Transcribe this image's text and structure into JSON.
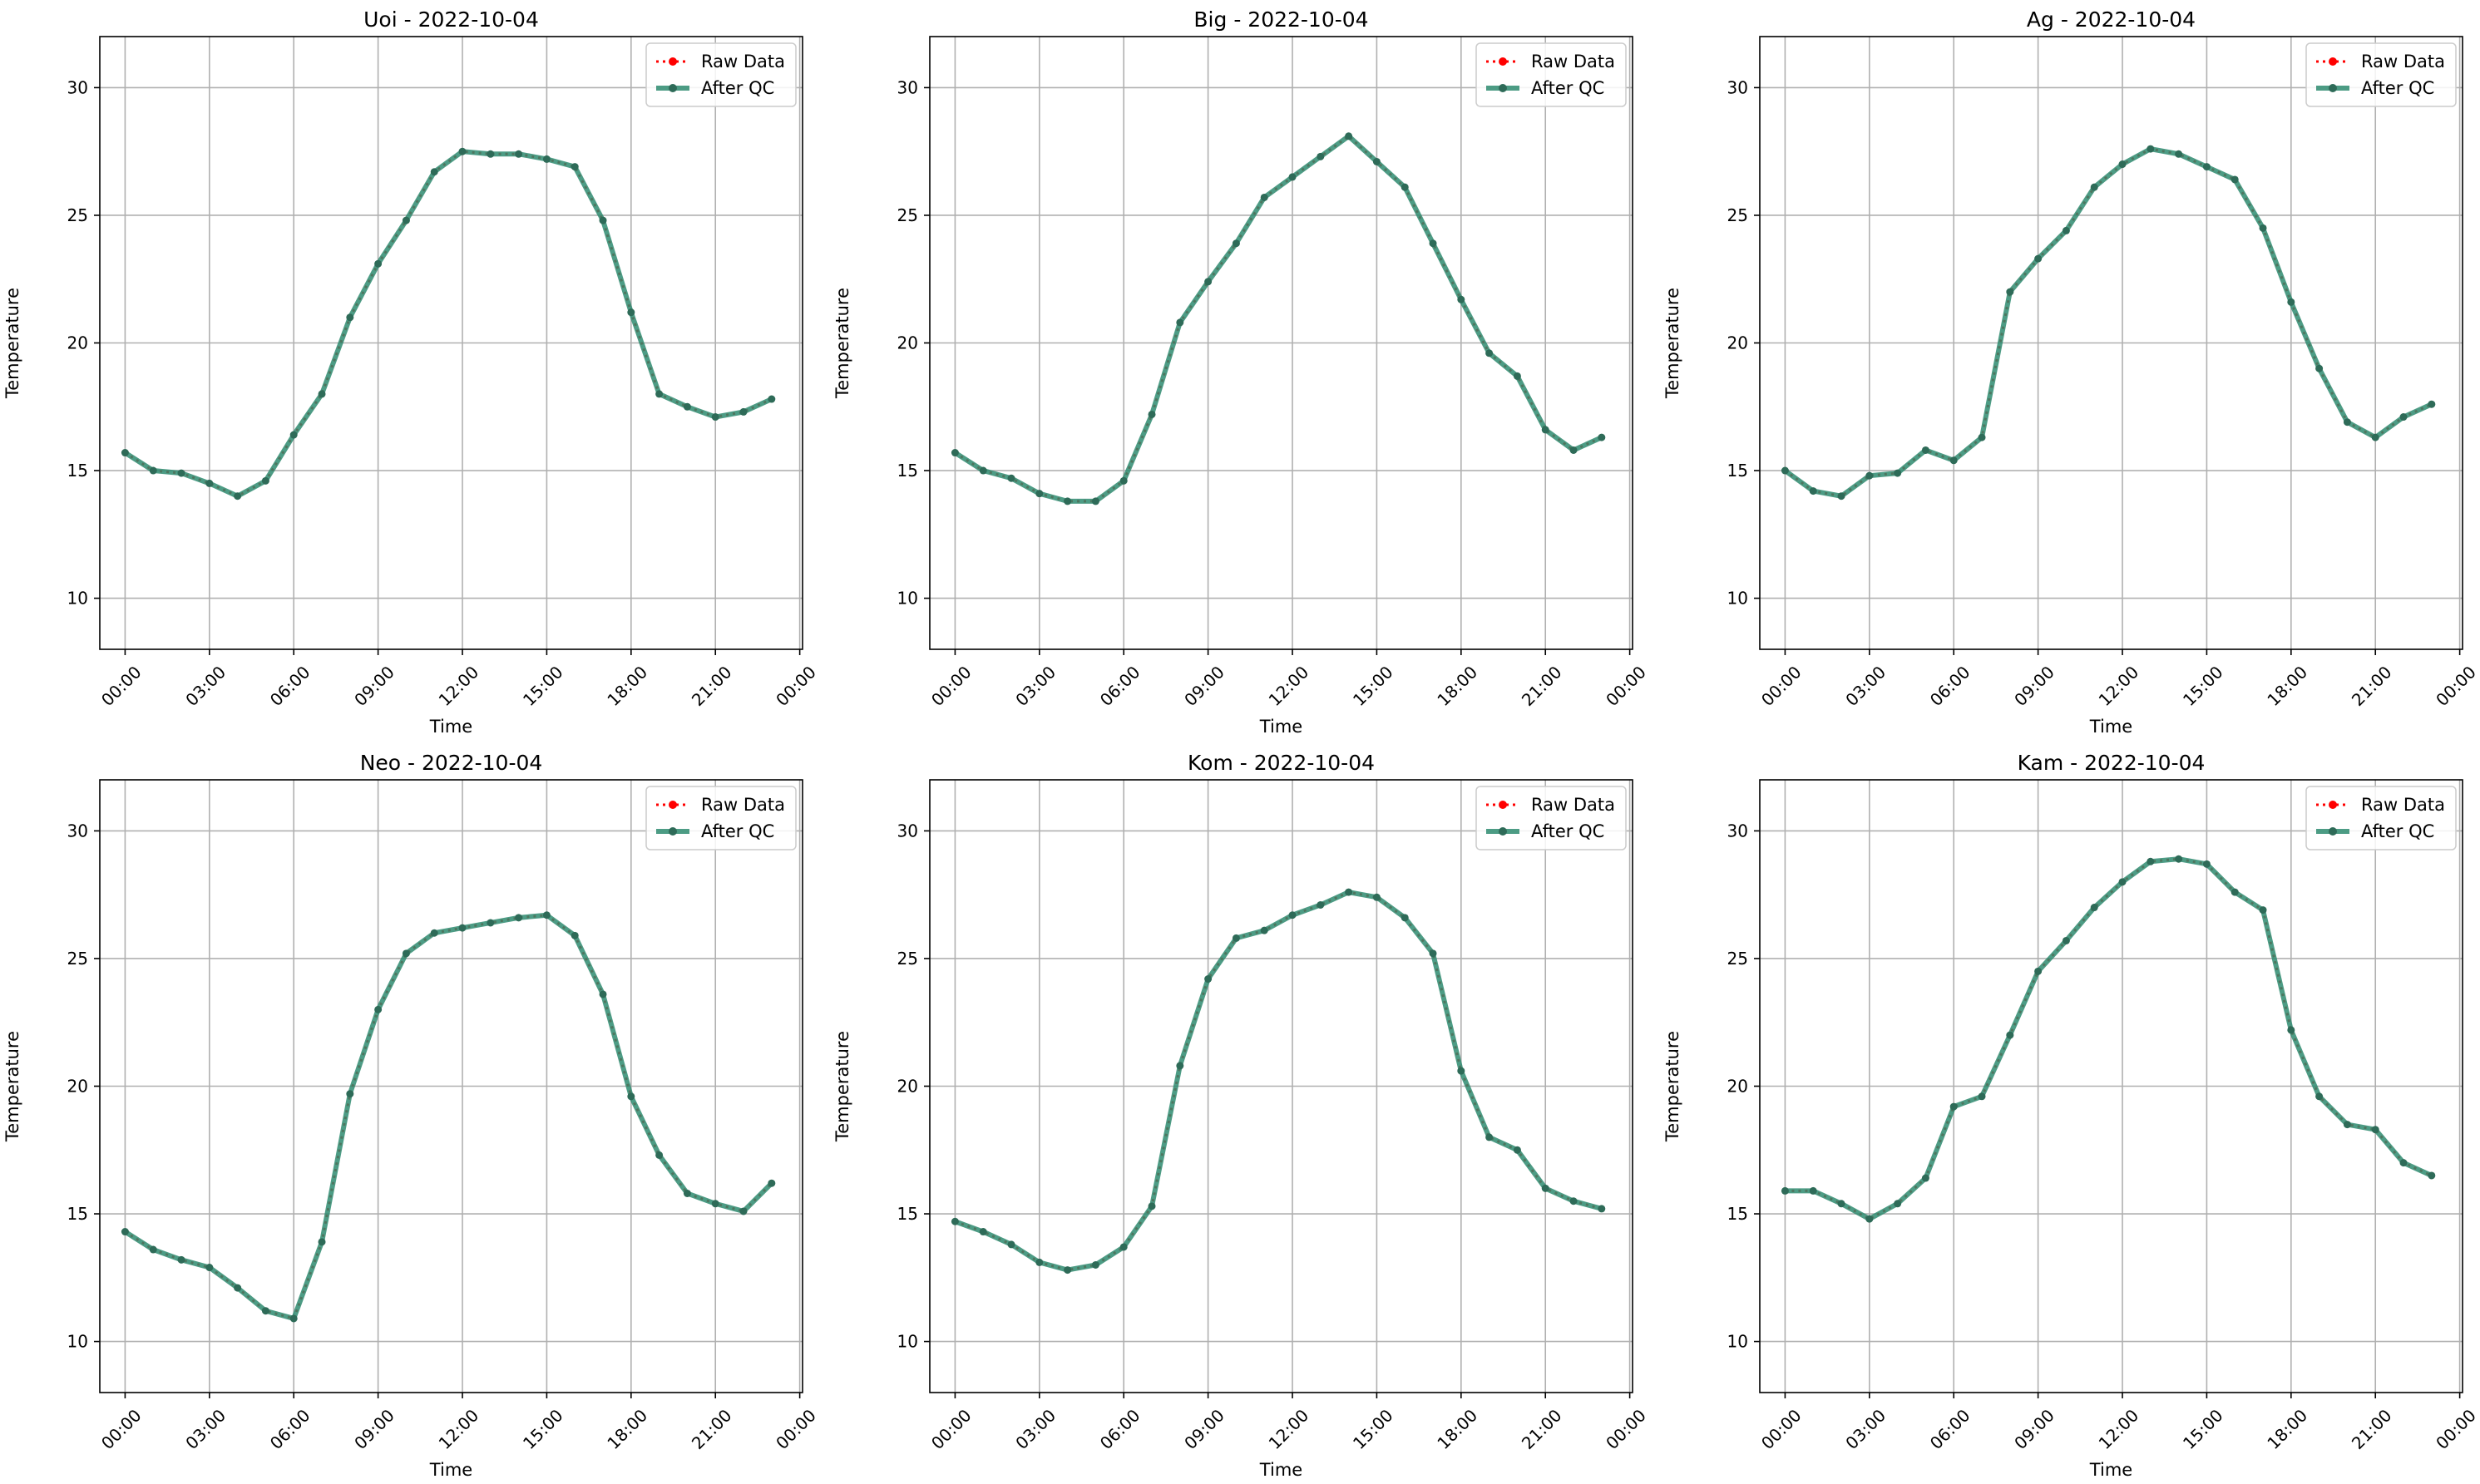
{
  "figure": {
    "layout": "2x3 grid of line charts"
  },
  "legend": {
    "raw_label": "Raw Data",
    "qc_label": "After QC",
    "placement": "upper-right"
  },
  "colors": {
    "raw": "#ff0000",
    "qc": "#2e8b70",
    "qc_marker": "#2e6b58",
    "grid": "#b0b0b0",
    "axis": "#000000"
  },
  "chart_data": [
    {
      "type": "line",
      "title": "Uoi - 2022-10-04",
      "xlabel": "Time",
      "ylabel": "Temperature",
      "xlim": [
        -0.9,
        24.1
      ],
      "ylim": [
        8,
        32
      ],
      "xticks": [
        0,
        3,
        6,
        9,
        12,
        15,
        18,
        21,
        24
      ],
      "xtick_labels": [
        "00:00",
        "03:00",
        "06:00",
        "09:00",
        "12:00",
        "15:00",
        "18:00",
        "21:00",
        "00:00"
      ],
      "yticks": [
        10,
        15,
        20,
        25,
        30
      ],
      "ytick_labels": [
        "10",
        "15",
        "20",
        "25",
        "30"
      ],
      "grid": true,
      "x": [
        0,
        1,
        2,
        3,
        4,
        5,
        6,
        7,
        8,
        9,
        10,
        11,
        12,
        13,
        14,
        15,
        16,
        17,
        18,
        19,
        20,
        21,
        22,
        23
      ],
      "series": [
        {
          "name": "Raw Data",
          "values": [
            15.7,
            15.0,
            14.9,
            14.5,
            14.0,
            14.6,
            16.4,
            18.0,
            21.0,
            23.1,
            24.8,
            26.7,
            27.5,
            27.4,
            27.4,
            27.2,
            26.9,
            24.8,
            21.2,
            18.0,
            17.5,
            17.1,
            17.3,
            17.8
          ]
        },
        {
          "name": "After QC",
          "values": [
            15.7,
            15.0,
            14.9,
            14.5,
            14.0,
            14.6,
            16.4,
            18.0,
            21.0,
            23.1,
            24.8,
            26.7,
            27.5,
            27.4,
            27.4,
            27.2,
            26.9,
            24.8,
            21.2,
            18.0,
            17.5,
            17.1,
            17.3,
            17.8
          ]
        }
      ]
    },
    {
      "type": "line",
      "title": "Big - 2022-10-04",
      "xlabel": "Time",
      "ylabel": "Temperature",
      "xlim": [
        -0.9,
        24.1
      ],
      "ylim": [
        8,
        32
      ],
      "xticks": [
        0,
        3,
        6,
        9,
        12,
        15,
        18,
        21,
        24
      ],
      "xtick_labels": [
        "00:00",
        "03:00",
        "06:00",
        "09:00",
        "12:00",
        "15:00",
        "18:00",
        "21:00",
        "00:00"
      ],
      "yticks": [
        10,
        15,
        20,
        25,
        30
      ],
      "ytick_labels": [
        "10",
        "15",
        "20",
        "25",
        "30"
      ],
      "grid": true,
      "x": [
        0,
        1,
        2,
        3,
        4,
        5,
        6,
        7,
        8,
        9,
        10,
        11,
        12,
        13,
        14,
        15,
        16,
        17,
        18,
        19,
        20,
        21,
        22,
        23
      ],
      "series": [
        {
          "name": "Raw Data",
          "values": [
            15.7,
            15.0,
            14.7,
            14.1,
            13.8,
            13.8,
            14.6,
            17.2,
            20.8,
            22.4,
            23.9,
            25.7,
            26.5,
            27.3,
            28.1,
            27.1,
            26.1,
            23.9,
            21.7,
            19.6,
            18.7,
            16.6,
            15.8,
            16.3
          ]
        },
        {
          "name": "After QC",
          "values": [
            15.7,
            15.0,
            14.7,
            14.1,
            13.8,
            13.8,
            14.6,
            17.2,
            20.8,
            22.4,
            23.9,
            25.7,
            26.5,
            27.3,
            28.1,
            27.1,
            26.1,
            23.9,
            21.7,
            19.6,
            18.7,
            16.6,
            15.8,
            16.3
          ]
        }
      ]
    },
    {
      "type": "line",
      "title": "Ag - 2022-10-04",
      "xlabel": "Time",
      "ylabel": "Temperature",
      "xlim": [
        -0.9,
        24.1
      ],
      "ylim": [
        8,
        32
      ],
      "xticks": [
        0,
        3,
        6,
        9,
        12,
        15,
        18,
        21,
        24
      ],
      "xtick_labels": [
        "00:00",
        "03:00",
        "06:00",
        "09:00",
        "12:00",
        "15:00",
        "18:00",
        "21:00",
        "00:00"
      ],
      "yticks": [
        10,
        15,
        20,
        25,
        30
      ],
      "ytick_labels": [
        "10",
        "15",
        "20",
        "25",
        "30"
      ],
      "grid": true,
      "x": [
        0,
        1,
        2,
        3,
        4,
        5,
        6,
        7,
        8,
        9,
        10,
        11,
        12,
        13,
        14,
        15,
        16,
        17,
        18,
        19,
        20,
        21,
        22,
        23
      ],
      "series": [
        {
          "name": "Raw Data",
          "values": [
            15.0,
            14.2,
            14.0,
            14.8,
            14.9,
            15.8,
            15.4,
            16.3,
            22.0,
            23.3,
            24.4,
            26.1,
            27.0,
            27.6,
            27.4,
            26.9,
            26.4,
            24.5,
            21.6,
            19.0,
            16.9,
            16.3,
            17.1,
            17.6
          ]
        },
        {
          "name": "After QC",
          "values": [
            15.0,
            14.2,
            14.0,
            14.8,
            14.9,
            15.8,
            15.4,
            16.3,
            22.0,
            23.3,
            24.4,
            26.1,
            27.0,
            27.6,
            27.4,
            26.9,
            26.4,
            24.5,
            21.6,
            19.0,
            16.9,
            16.3,
            17.1,
            17.6
          ]
        }
      ]
    },
    {
      "type": "line",
      "title": "Neo - 2022-10-04",
      "xlabel": "Time",
      "ylabel": "Temperature",
      "xlim": [
        -0.9,
        24.1
      ],
      "ylim": [
        8,
        32
      ],
      "xticks": [
        0,
        3,
        6,
        9,
        12,
        15,
        18,
        21,
        24
      ],
      "xtick_labels": [
        "00:00",
        "03:00",
        "06:00",
        "09:00",
        "12:00",
        "15:00",
        "18:00",
        "21:00",
        "00:00"
      ],
      "yticks": [
        10,
        15,
        20,
        25,
        30
      ],
      "ytick_labels": [
        "10",
        "15",
        "20",
        "25",
        "30"
      ],
      "grid": true,
      "x": [
        0,
        1,
        2,
        3,
        4,
        5,
        6,
        7,
        8,
        9,
        10,
        11,
        12,
        13,
        14,
        15,
        16,
        17,
        18,
        19,
        20,
        21,
        22,
        23
      ],
      "series": [
        {
          "name": "Raw Data",
          "values": [
            14.3,
            13.6,
            13.2,
            12.9,
            12.1,
            11.2,
            10.9,
            13.9,
            19.7,
            23.0,
            25.2,
            26.0,
            26.2,
            26.4,
            26.6,
            26.7,
            25.9,
            23.6,
            19.6,
            17.3,
            15.8,
            15.4,
            15.1,
            16.2
          ]
        },
        {
          "name": "After QC",
          "values": [
            14.3,
            13.6,
            13.2,
            12.9,
            12.1,
            11.2,
            10.9,
            13.9,
            19.7,
            23.0,
            25.2,
            26.0,
            26.2,
            26.4,
            26.6,
            26.7,
            25.9,
            23.6,
            19.6,
            17.3,
            15.8,
            15.4,
            15.1,
            16.2
          ]
        }
      ]
    },
    {
      "type": "line",
      "title": "Kom - 2022-10-04",
      "xlabel": "Time",
      "ylabel": "Temperature",
      "xlim": [
        -0.9,
        24.1
      ],
      "ylim": [
        8,
        32
      ],
      "xticks": [
        0,
        3,
        6,
        9,
        12,
        15,
        18,
        21,
        24
      ],
      "xtick_labels": [
        "00:00",
        "03:00",
        "06:00",
        "09:00",
        "12:00",
        "15:00",
        "18:00",
        "21:00",
        "00:00"
      ],
      "yticks": [
        10,
        15,
        20,
        25,
        30
      ],
      "ytick_labels": [
        "10",
        "15",
        "20",
        "25",
        "30"
      ],
      "grid": true,
      "x": [
        0,
        1,
        2,
        3,
        4,
        5,
        6,
        7,
        8,
        9,
        10,
        11,
        12,
        13,
        14,
        15,
        16,
        17,
        18,
        19,
        20,
        21,
        22,
        23
      ],
      "series": [
        {
          "name": "Raw Data",
          "values": [
            14.7,
            14.3,
            13.8,
            13.1,
            12.8,
            13.0,
            13.7,
            15.3,
            20.8,
            24.2,
            25.8,
            26.1,
            26.7,
            27.1,
            27.6,
            27.4,
            26.6,
            25.2,
            20.6,
            18.0,
            17.5,
            16.0,
            15.5,
            15.2
          ]
        },
        {
          "name": "After QC",
          "values": [
            14.7,
            14.3,
            13.8,
            13.1,
            12.8,
            13.0,
            13.7,
            15.3,
            20.8,
            24.2,
            25.8,
            26.1,
            26.7,
            27.1,
            27.6,
            27.4,
            26.6,
            25.2,
            20.6,
            18.0,
            17.5,
            16.0,
            15.5,
            15.2
          ]
        }
      ]
    },
    {
      "type": "line",
      "title": "Kam - 2022-10-04",
      "xlabel": "Time",
      "ylabel": "Temperature",
      "xlim": [
        -0.9,
        24.1
      ],
      "ylim": [
        8,
        32
      ],
      "xticks": [
        0,
        3,
        6,
        9,
        12,
        15,
        18,
        21,
        24
      ],
      "xtick_labels": [
        "00:00",
        "03:00",
        "06:00",
        "09:00",
        "12:00",
        "15:00",
        "18:00",
        "21:00",
        "00:00"
      ],
      "yticks": [
        10,
        15,
        20,
        25,
        30
      ],
      "ytick_labels": [
        "10",
        "15",
        "20",
        "25",
        "30"
      ],
      "grid": true,
      "x": [
        0,
        1,
        2,
        3,
        4,
        5,
        6,
        7,
        8,
        9,
        10,
        11,
        12,
        13,
        14,
        15,
        16,
        17,
        18,
        19,
        20,
        21,
        22,
        23
      ],
      "series": [
        {
          "name": "Raw Data",
          "values": [
            15.9,
            15.9,
            15.4,
            14.8,
            15.4,
            16.4,
            19.2,
            19.6,
            22.0,
            24.5,
            25.7,
            27.0,
            28.0,
            28.8,
            28.9,
            28.7,
            27.6,
            26.9,
            22.2,
            19.6,
            18.5,
            18.3,
            17.0,
            16.5
          ]
        },
        {
          "name": "After QC",
          "values": [
            15.9,
            15.9,
            15.4,
            14.8,
            15.4,
            16.4,
            19.2,
            19.6,
            22.0,
            24.5,
            25.7,
            27.0,
            28.0,
            28.8,
            28.9,
            28.7,
            27.6,
            26.9,
            22.2,
            19.6,
            18.5,
            18.3,
            17.0,
            16.5
          ]
        }
      ]
    }
  ]
}
